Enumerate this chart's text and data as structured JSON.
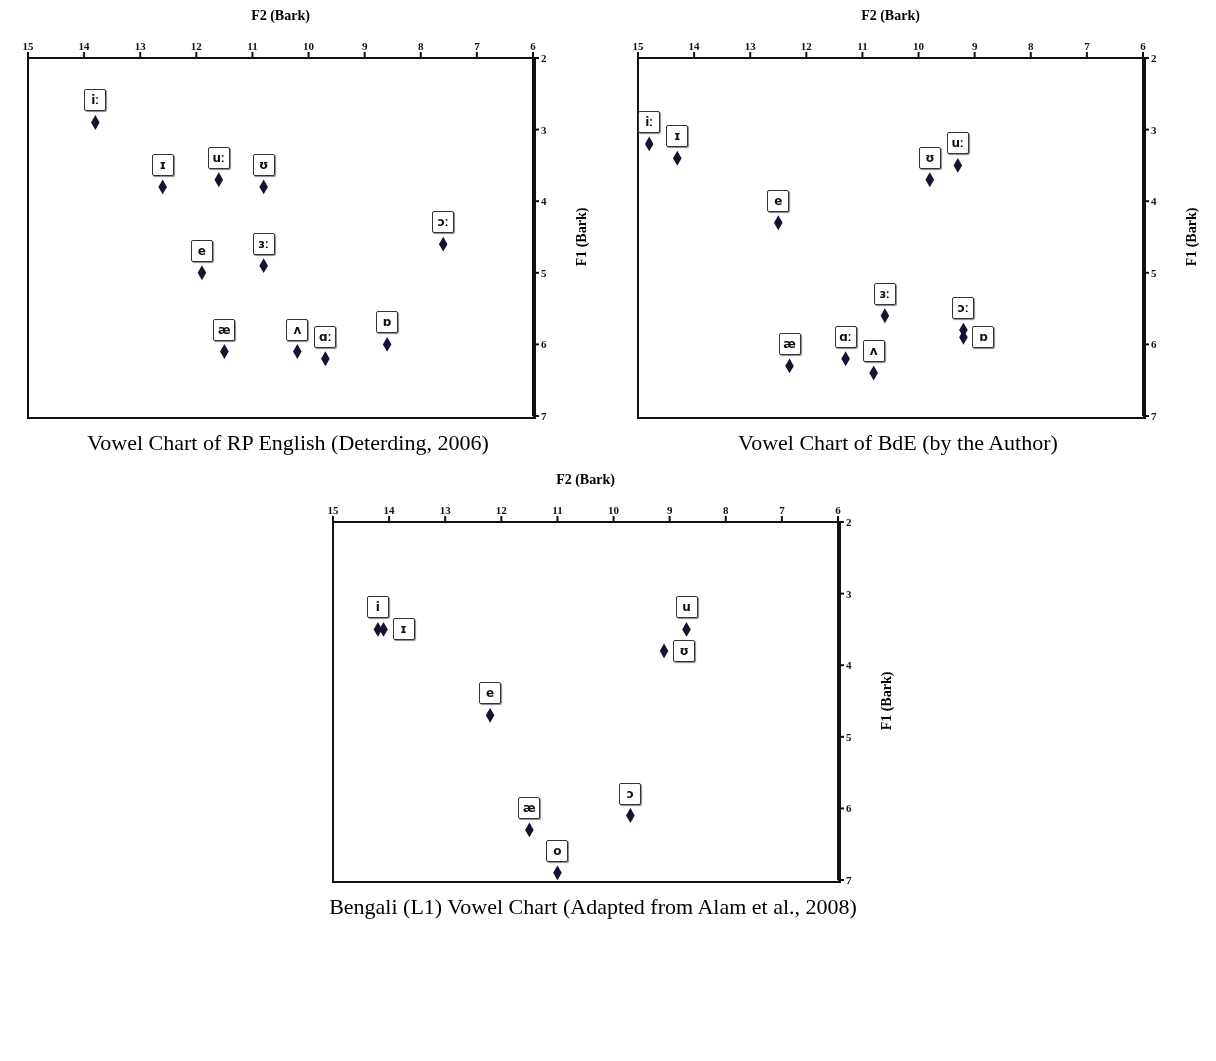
{
  "chart_data": [
    {
      "type": "scatter",
      "title": "Vowel Chart of RP English (Deterding, 2006)",
      "xlabel": "F2 (Bark)",
      "ylabel": "F1 (Bark)",
      "color": "#141432",
      "marker": "diamond",
      "xlim": [
        15,
        6
      ],
      "ylim": [
        7,
        2
      ],
      "xticks": [
        15,
        14,
        13,
        12,
        11,
        10,
        9,
        8,
        7,
        6
      ],
      "yticks": [
        2,
        3,
        4,
        5,
        6,
        7
      ],
      "x": [
        13.8,
        12.6,
        11.6,
        10.8,
        7.6,
        11.9,
        10.8,
        11.5,
        10.2,
        9.7,
        8.6
      ],
      "values": [
        2.9,
        3.8,
        3.7,
        3.8,
        4.6,
        5.0,
        4.9,
        6.1,
        6.1,
        6.2,
        6.0
      ],
      "annotations": [
        {
          "text": "iː",
          "x": 13.8,
          "y": 2.9
        },
        {
          "text": "ɪ",
          "x": 12.6,
          "y": 3.8
        },
        {
          "text": "uː",
          "x": 11.6,
          "y": 3.7
        },
        {
          "text": "ʊ",
          "x": 10.8,
          "y": 3.8
        },
        {
          "text": "ɔː",
          "x": 7.6,
          "y": 4.6
        },
        {
          "text": "e",
          "x": 11.9,
          "y": 5.0
        },
        {
          "text": "ɜː",
          "x": 10.8,
          "y": 4.9
        },
        {
          "text": "æ",
          "x": 11.5,
          "y": 6.1
        },
        {
          "text": "ʌ",
          "x": 10.2,
          "y": 6.1
        },
        {
          "text": "ɑː",
          "x": 9.7,
          "y": 6.2
        },
        {
          "text": "ɒ",
          "x": 8.6,
          "y": 6.0
        }
      ]
    },
    {
      "type": "scatter",
      "title": "Vowel Chart of BdE (by the Author)",
      "xlabel": "F2 (Bark)",
      "ylabel": "F1 (Bark)",
      "color": "#141432",
      "marker": "diamond",
      "xlim": [
        15,
        6
      ],
      "ylim": [
        7,
        2
      ],
      "xticks": [
        15,
        14,
        13,
        12,
        11,
        10,
        9,
        8,
        7,
        6
      ],
      "yticks": [
        2,
        3,
        4,
        5,
        6,
        7
      ],
      "x": [
        14.8,
        14.3,
        9.3,
        9.8,
        12.5,
        10.6,
        9.2,
        9.2,
        11.3,
        10.8,
        12.3
      ],
      "values": [
        3.2,
        3.4,
        3.5,
        3.7,
        4.3,
        5.6,
        5.8,
        5.9,
        6.2,
        6.4,
        6.3
      ],
      "annotations": [
        {
          "text": "iː",
          "x": 14.8,
          "y": 3.2
        },
        {
          "text": "ɪ",
          "x": 14.3,
          "y": 3.4
        },
        {
          "text": "uː",
          "x": 9.3,
          "y": 3.5
        },
        {
          "text": "ʊ",
          "x": 9.8,
          "y": 3.7
        },
        {
          "text": "e",
          "x": 12.5,
          "y": 4.3
        },
        {
          "text": "ɜː",
          "x": 10.6,
          "y": 5.6
        },
        {
          "text": "ɔː",
          "x": 9.2,
          "y": 5.8
        },
        {
          "text": "ɒ",
          "x": 9.2,
          "y": 5.9
        },
        {
          "text": "ɑː",
          "x": 11.3,
          "y": 6.2
        },
        {
          "text": "ʌ",
          "x": 10.8,
          "y": 6.4
        },
        {
          "text": "æ",
          "x": 12.3,
          "y": 6.3
        }
      ]
    },
    {
      "type": "scatter",
      "title": "Bengali (L1) Vowel Chart (Adapted from Alam et al., 2008)",
      "xlabel": "F2 (Bark)",
      "ylabel": "F1 (Bark)",
      "color": "#141432",
      "marker": "diamond",
      "xlim": [
        15,
        6
      ],
      "ylim": [
        7,
        2
      ],
      "xticks": [
        15,
        14,
        13,
        12,
        11,
        10,
        9,
        8,
        7,
        6
      ],
      "yticks": [
        2,
        3,
        4,
        5,
        6,
        7
      ],
      "x": [
        14.2,
        14.1,
        8.7,
        9.1,
        12.2,
        9.7,
        11.5,
        11.0
      ],
      "values": [
        3.5,
        3.5,
        3.5,
        3.8,
        4.7,
        6.1,
        6.3,
        6.9
      ],
      "annotations": [
        {
          "text": "i",
          "x": 14.2,
          "y": 3.5
        },
        {
          "text": "ɪ",
          "x": 14.1,
          "y": 3.5
        },
        {
          "text": "u",
          "x": 8.7,
          "y": 3.5
        },
        {
          "text": "ʊ",
          "x": 9.1,
          "y": 3.8
        },
        {
          "text": "e",
          "x": 12.2,
          "y": 4.7
        },
        {
          "text": "ɔ",
          "x": 9.7,
          "y": 6.1
        },
        {
          "text": "æ",
          "x": 11.5,
          "y": 6.3
        },
        {
          "text": "o",
          "x": 11.0,
          "y": 6.9
        }
      ]
    }
  ]
}
